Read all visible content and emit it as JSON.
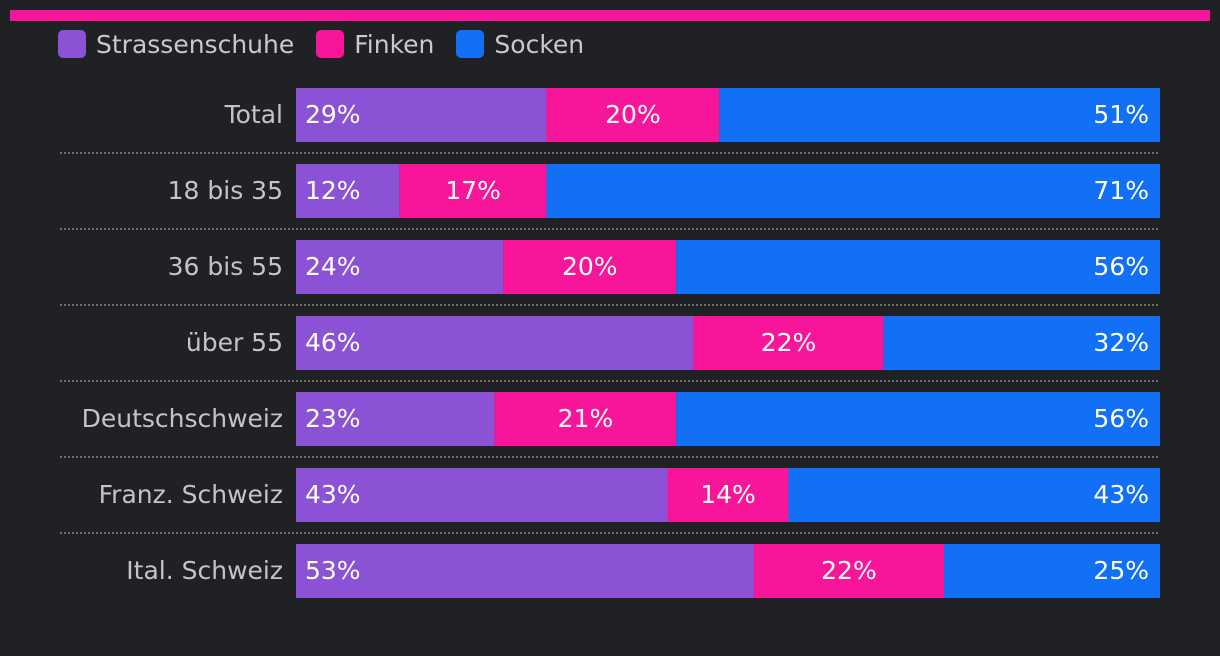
{
  "colors": {
    "background": "#202124",
    "accent_bar": "#f7159a",
    "Strassenschuhe": "#8b52d6",
    "Finken": "#f7159a",
    "Socken": "#1170f5",
    "separator": "#8a8a8a"
  },
  "chart_data": {
    "type": "bar",
    "orientation": "horizontal",
    "stacked": true,
    "percent_scale": [
      0,
      100
    ],
    "legend": [
      "Strassenschuhe",
      "Finken",
      "Socken"
    ],
    "legend_placement": "top-left",
    "categories": [
      "Total",
      "18 bis 35",
      "36 bis 55",
      "über 55",
      "Deutschschweiz",
      "Franz. Schweiz",
      "Ital. Schweiz"
    ],
    "series": [
      {
        "name": "Strassenschuhe",
        "values": [
          29,
          12,
          24,
          46,
          23,
          43,
          53
        ],
        "labels": [
          "29%",
          "12%",
          "24%",
          "46%",
          "23%",
          "43%",
          "53%"
        ]
      },
      {
        "name": "Finken",
        "values": [
          20,
          17,
          20,
          22,
          21,
          14,
          22
        ],
        "labels": [
          "20%",
          "17%",
          "20%",
          "22%",
          "21%",
          "14%",
          "22%"
        ]
      },
      {
        "name": "Socken",
        "values": [
          51,
          71,
          56,
          32,
          56,
          43,
          25
        ],
        "labels": [
          "51%",
          "71%",
          "56%",
          "32%",
          "56%",
          "43%",
          "25%"
        ]
      }
    ]
  }
}
